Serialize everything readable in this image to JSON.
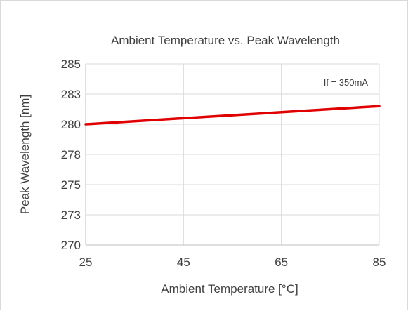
{
  "chart_data": {
    "type": "line",
    "title": "Ambient Temperature vs. Peak Wavelength",
    "xlabel": "Ambient Temperature [°C]",
    "ylabel": "Peak Wavelength [nm]",
    "annotation": "If = 350mA",
    "xlim": [
      25,
      85
    ],
    "ylim": [
      270,
      285
    ],
    "x_ticks": [
      {
        "value": 25,
        "label": "25"
      },
      {
        "value": 45,
        "label": "45"
      },
      {
        "value": 65,
        "label": "65"
      },
      {
        "value": 85,
        "label": "85"
      }
    ],
    "y_ticks": [
      {
        "value": 270,
        "label": "270"
      },
      {
        "value": 272.5,
        "label": "273"
      },
      {
        "value": 275,
        "label": "275"
      },
      {
        "value": 277.5,
        "label": "278"
      },
      {
        "value": 280,
        "label": "280"
      },
      {
        "value": 282.5,
        "label": "283"
      },
      {
        "value": 285,
        "label": "285"
      }
    ],
    "grid": true,
    "series": [
      {
        "color": "#e00000",
        "x": [
          25,
          45,
          65,
          85
        ],
        "y": [
          280.0,
          280.5,
          281.0,
          281.5
        ]
      }
    ]
  }
}
